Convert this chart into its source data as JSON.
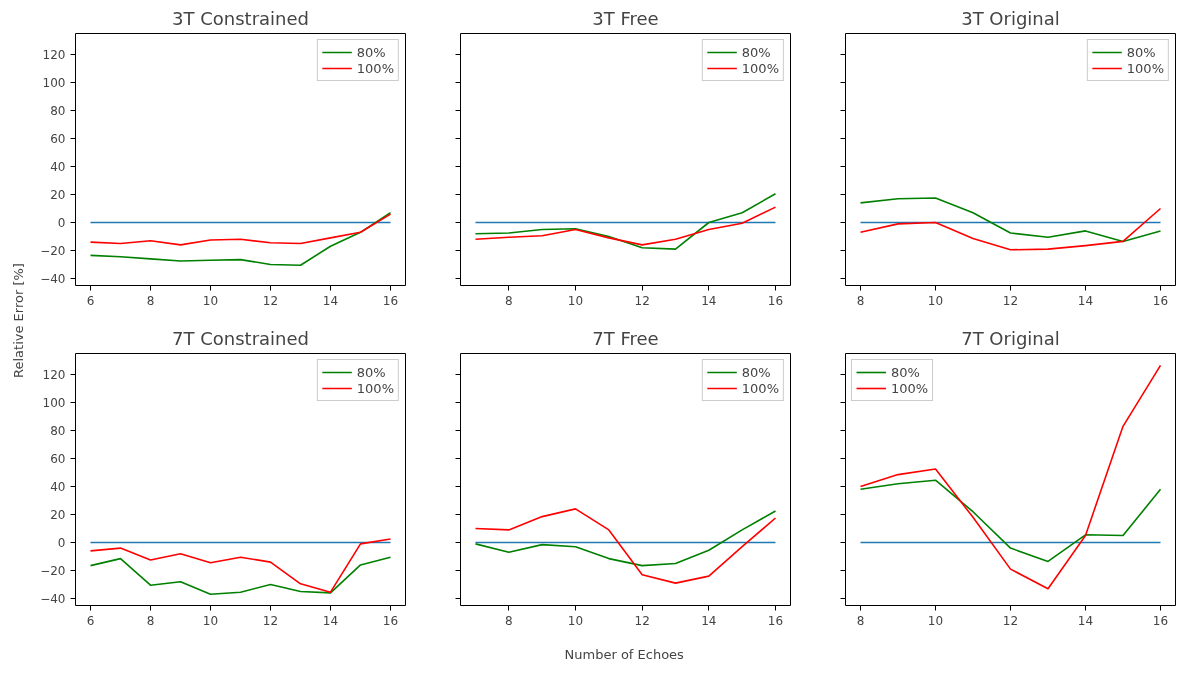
{
  "chart_data": [
    {
      "type": "line",
      "title": "3T Constrained",
      "x": [
        6,
        7,
        8,
        9,
        10,
        11,
        12,
        13,
        14,
        15,
        16
      ],
      "xlim": [
        5.5,
        16.5
      ],
      "xticks": [
        6,
        8,
        10,
        12,
        14,
        16
      ],
      "ylim": [
        -45,
        135
      ],
      "yticks": [
        -40,
        -20,
        0,
        20,
        40,
        60,
        80,
        100,
        120
      ],
      "legend": "top right",
      "grid": false,
      "series": [
        {
          "color": "#1f77b4",
          "values": [
            0,
            0,
            0,
            0,
            0,
            0,
            0,
            0,
            0,
            0,
            0
          ]
        },
        {
          "name": "80%",
          "color": "#008000",
          "values": [
            -23.5,
            -24.5,
            -26,
            -27.5,
            -27,
            -26.5,
            -30,
            -30.5,
            -17,
            -7,
            7
          ]
        },
        {
          "name": "100%",
          "color": "#ff0000",
          "values": [
            -14,
            -15,
            -13,
            -16,
            -12.5,
            -12,
            -14.5,
            -15,
            -11,
            -7,
            6
          ]
        }
      ]
    },
    {
      "type": "line",
      "title": "3T Free",
      "x": [
        7,
        8,
        9,
        10,
        11,
        12,
        13,
        14,
        15,
        16
      ],
      "xlim": [
        6.55,
        16.45
      ],
      "xticks": [
        8,
        10,
        12,
        14,
        16
      ],
      "ylim": [
        -45,
        135
      ],
      "yticks": [
        -40,
        -20,
        0,
        20,
        40,
        60,
        80,
        100,
        120
      ],
      "tick_labels": "x",
      "legend": "top right",
      "grid": false,
      "series": [
        {
          "color": "#1f77b4",
          "values": [
            0,
            0,
            0,
            0,
            0,
            0,
            0,
            0,
            0,
            0
          ]
        },
        {
          "name": "80%",
          "color": "#008000",
          "values": [
            -8,
            -7.5,
            -5,
            -4.5,
            -10,
            -18,
            -19,
            0,
            7,
            20.5
          ]
        },
        {
          "name": "100%",
          "color": "#ff0000",
          "values": [
            -12,
            -10.5,
            -9.5,
            -5,
            -11,
            -16,
            -12,
            -5,
            -0.5,
            11
          ]
        }
      ]
    },
    {
      "type": "line",
      "title": "3T Original",
      "x": [
        8,
        9,
        10,
        11,
        12,
        13,
        14,
        15,
        16
      ],
      "xlim": [
        7.6,
        16.4
      ],
      "xticks": [
        8,
        10,
        12,
        14,
        16
      ],
      "ylim": [
        -45,
        135
      ],
      "yticks": [
        -40,
        -20,
        0,
        20,
        40,
        60,
        80,
        100,
        120
      ],
      "tick_labels": "x",
      "legend": "top right",
      "grid": false,
      "series": [
        {
          "color": "#1f77b4",
          "values": [
            0,
            0,
            0,
            0,
            0,
            0,
            0,
            0,
            0
          ]
        },
        {
          "name": "80%",
          "color": "#008000",
          "values": [
            14,
            17,
            17.5,
            7,
            -7.5,
            -10.5,
            -6,
            -13.5,
            -6
          ]
        },
        {
          "name": "100%",
          "color": "#ff0000",
          "values": [
            -7,
            -1,
            0,
            -11.5,
            -19.5,
            -19,
            -16.5,
            -13.5,
            10
          ]
        }
      ]
    },
    {
      "type": "line",
      "title": "7T Constrained",
      "ylabel": "Relative Error [%]",
      "x": [
        6,
        7,
        8,
        9,
        10,
        11,
        12,
        13,
        14,
        15,
        16
      ],
      "xlim": [
        5.5,
        16.5
      ],
      "xticks": [
        6,
        8,
        10,
        12,
        14,
        16
      ],
      "ylim": [
        -45,
        135
      ],
      "yticks": [
        -40,
        -20,
        0,
        20,
        40,
        60,
        80,
        100,
        120
      ],
      "legend": "top right",
      "grid": false,
      "series": [
        {
          "color": "#1f77b4",
          "values": [
            0,
            0,
            0,
            0,
            0,
            0,
            0,
            0,
            0,
            0,
            0
          ]
        },
        {
          "name": "80%",
          "color": "#008000",
          "values": [
            -16.5,
            -11.5,
            -30.5,
            -28,
            -37,
            -35.5,
            -30,
            -35,
            -36,
            -16,
            -10.5
          ]
        },
        {
          "name": "100%",
          "color": "#ff0000",
          "values": [
            -6,
            -4,
            -12.5,
            -8,
            -14.5,
            -10.5,
            -14,
            -29.5,
            -35.5,
            -1,
            2.5
          ]
        }
      ]
    },
    {
      "type": "line",
      "title": "7T Free",
      "xlabel": "Number of Echoes",
      "x": [
        7,
        8,
        9,
        10,
        11,
        12,
        13,
        14,
        15,
        16
      ],
      "xlim": [
        6.55,
        16.45
      ],
      "xticks": [
        8,
        10,
        12,
        14,
        16
      ],
      "ylim": [
        -45,
        135
      ],
      "yticks": [
        -40,
        -20,
        0,
        20,
        40,
        60,
        80,
        100,
        120
      ],
      "tick_labels": "x",
      "legend": "top right",
      "grid": false,
      "series": [
        {
          "color": "#1f77b4",
          "values": [
            0,
            0,
            0,
            0,
            0,
            0,
            0,
            0,
            0,
            0
          ]
        },
        {
          "name": "80%",
          "color": "#008000",
          "values": [
            -1,
            -7,
            -1.5,
            -3,
            -11.5,
            -16.5,
            -15,
            -5.5,
            9,
            22.5
          ]
        },
        {
          "name": "100%",
          "color": "#ff0000",
          "values": [
            10,
            9,
            18.5,
            24,
            9,
            -23,
            -29,
            -24,
            -3,
            17.5
          ]
        }
      ]
    },
    {
      "type": "line",
      "title": "7T Original",
      "x": [
        8,
        9,
        10,
        11,
        12,
        13,
        14,
        15,
        16
      ],
      "xlim": [
        7.6,
        16.4
      ],
      "xticks": [
        8,
        10,
        12,
        14,
        16
      ],
      "ylim": [
        -45,
        135
      ],
      "yticks": [
        -40,
        -20,
        0,
        20,
        40,
        60,
        80,
        100,
        120
      ],
      "tick_labels": "x",
      "legend": "top left",
      "grid": false,
      "series": [
        {
          "color": "#1f77b4",
          "values": [
            0,
            0,
            0,
            0,
            0,
            0,
            0,
            0,
            0
          ]
        },
        {
          "name": "80%",
          "color": "#008000",
          "values": [
            38,
            42,
            44.5,
            22,
            -4,
            -13.5,
            5.5,
            5,
            38
          ]
        },
        {
          "name": "100%",
          "color": "#ff0000",
          "values": [
            40,
            48.5,
            52.5,
            18,
            -19,
            -33,
            5,
            83,
            126.5
          ]
        }
      ]
    }
  ]
}
